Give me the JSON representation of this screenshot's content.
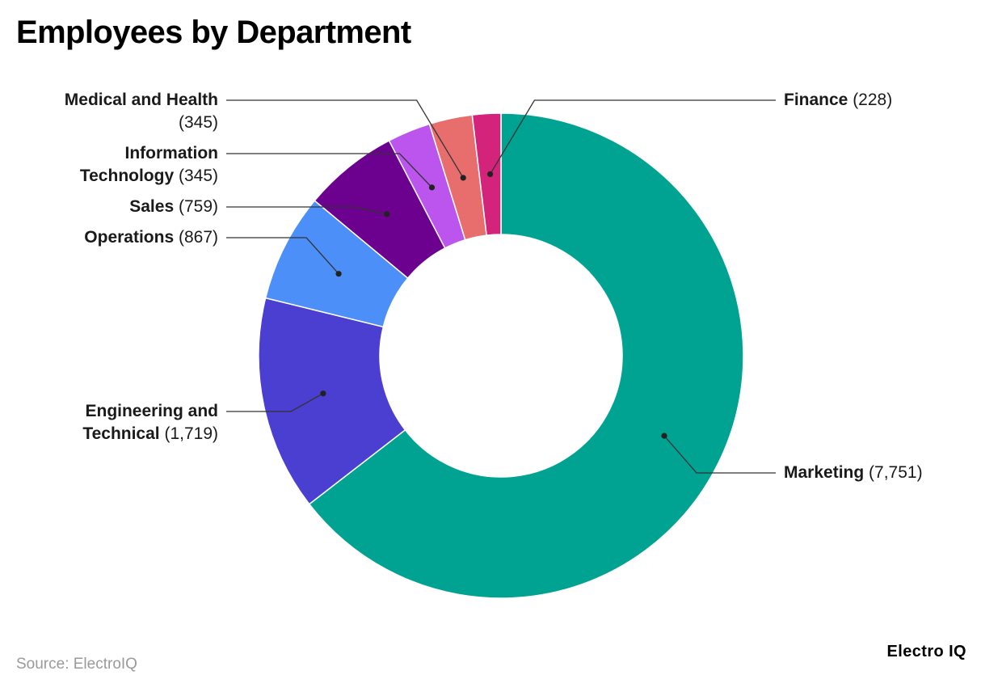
{
  "title": "Employees by Department",
  "source": "Source: ElectroIQ",
  "brand": "Electro IQ",
  "chart_data": {
    "type": "pie",
    "variant": "donut",
    "title": "Employees by Department",
    "slices": [
      {
        "name": "Marketing",
        "value": 7751,
        "value_label": "(7,751)",
        "color": "#00a392"
      },
      {
        "name": "Engineering and Technical",
        "value": 1719,
        "value_label": "(1,719)",
        "color": "#4a3fd1"
      },
      {
        "name": "Operations",
        "value": 867,
        "value_label": "(867)",
        "color": "#4d8ff8"
      },
      {
        "name": "Sales",
        "value": 759,
        "value_label": "(759)",
        "color": "#6c008f"
      },
      {
        "name": "Information Technology",
        "value": 345,
        "value_label": "(345)",
        "color": "#bb55ee"
      },
      {
        "name": "Medical and Health",
        "value": 345,
        "value_label": "(345)",
        "color": "#e86e6e"
      },
      {
        "name": "Finance",
        "value": 228,
        "value_label": "(228)",
        "color": "#d4237a"
      }
    ],
    "legend": "none"
  }
}
